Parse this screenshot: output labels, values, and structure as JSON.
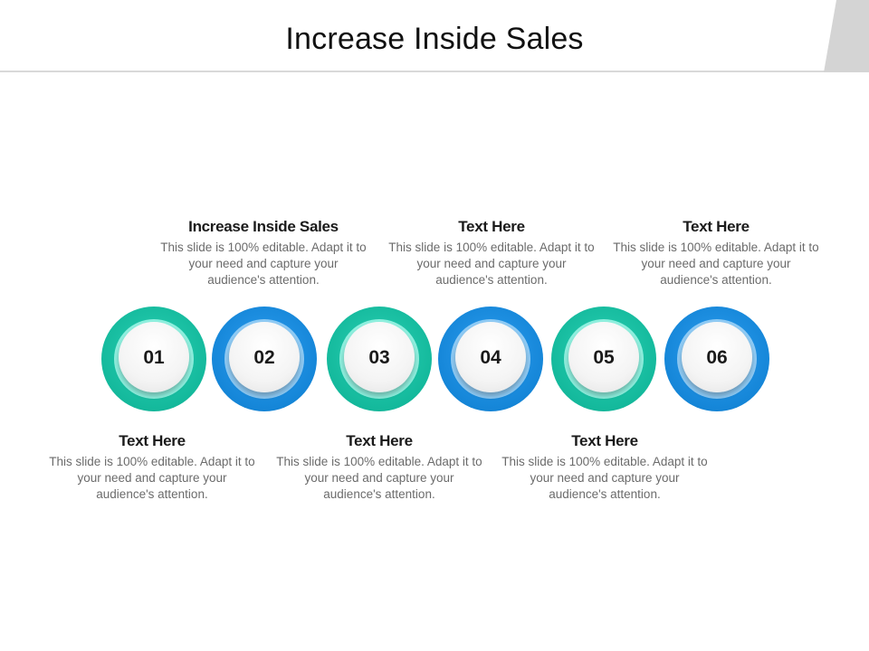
{
  "title": "Increase Inside Sales",
  "steps": [
    {
      "number": "01",
      "heading": "Text Here",
      "body": "This slide is 100% editable. Adapt it to your need and capture your audience's attention.",
      "color": "#14b99c"
    },
    {
      "number": "02",
      "heading": "Increase Inside Sales",
      "body": "This slide is 100% editable. Adapt it to your need and capture your audience's attention.",
      "color": "#1586d8"
    },
    {
      "number": "03",
      "heading": "Text Here",
      "body": "This slide is 100% editable. Adapt it to your need and capture your audience's attention.",
      "color": "#14b99c"
    },
    {
      "number": "04",
      "heading": "Text Here",
      "body": "This slide is 100% editable. Adapt it to your need and capture your audience's attention.",
      "color": "#1586d8"
    },
    {
      "number": "05",
      "heading": "Text Here",
      "body": "This slide is 100% editable. Adapt it to your need and capture your audience's attention.",
      "color": "#14b99c"
    },
    {
      "number": "06",
      "heading": "Text Here",
      "body": "This slide is 100% editable. Adapt it to your need and capture your audience's attention.",
      "color": "#1586d8"
    }
  ]
}
